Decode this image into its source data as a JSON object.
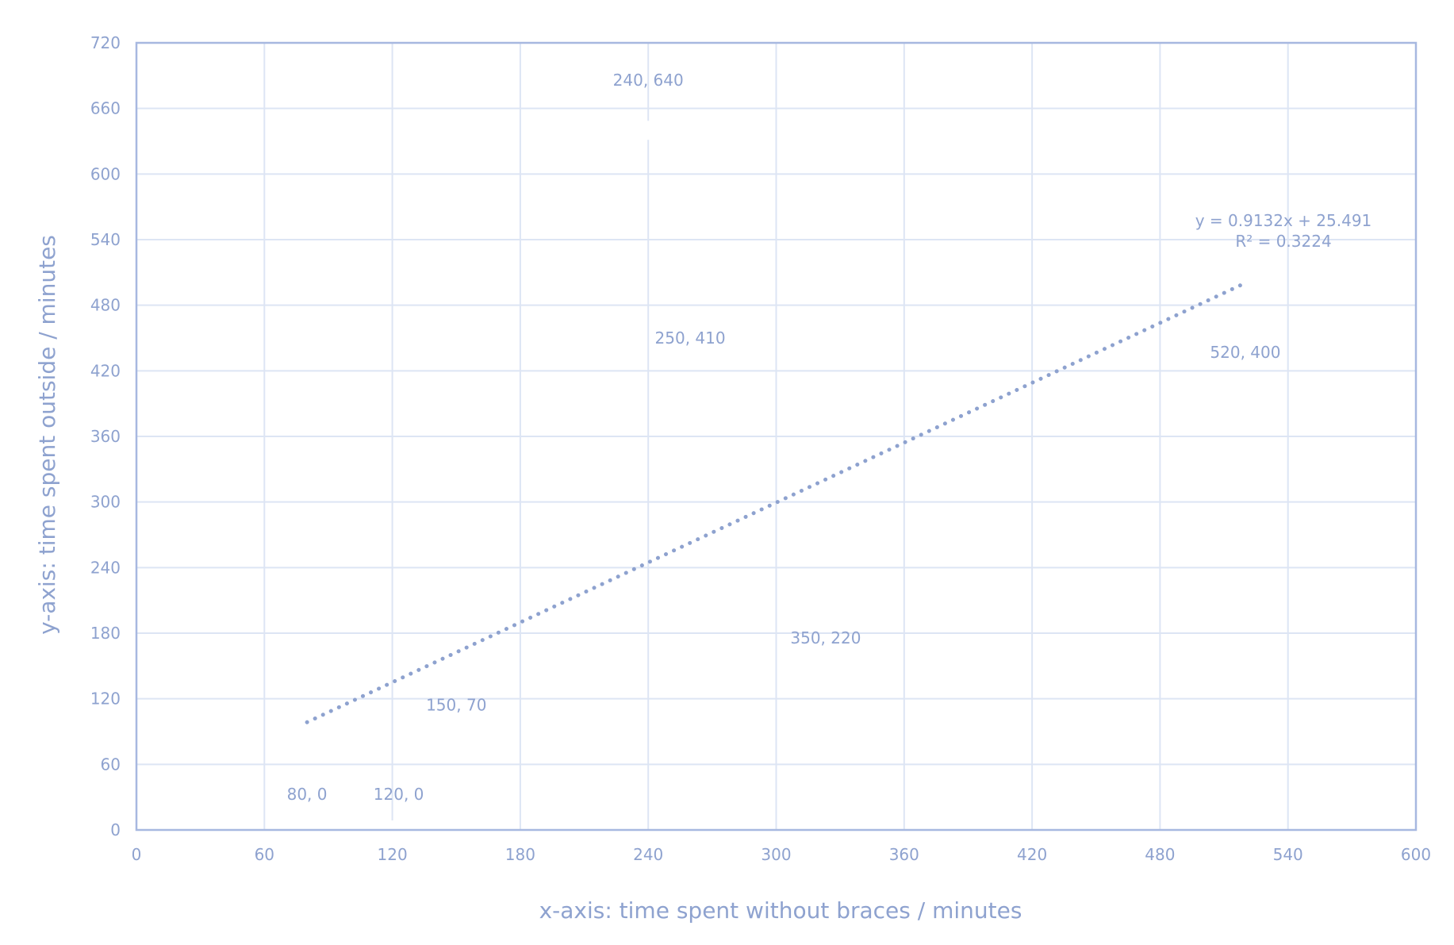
{
  "colors": {
    "text": "#8ea2cf",
    "axis": "#a7b8e0",
    "grid": "#dde5f4",
    "trendline": "#8ea2cf",
    "marker": "#ffffff"
  },
  "chart_data": {
    "type": "scatter",
    "title": "",
    "xlabel": "x-axis: time spent without braces / minutes",
    "ylabel": "y-axis: time spent outside / minutes",
    "xlim": [
      0,
      600
    ],
    "ylim": [
      0,
      720
    ],
    "xticks": [
      "0",
      "60",
      "120",
      "180",
      "240",
      "300",
      "360",
      "420",
      "480",
      "540",
      "600"
    ],
    "yticks": [
      "0",
      "60",
      "120",
      "180",
      "240",
      "300",
      "360",
      "420",
      "480",
      "540",
      "600",
      "660",
      "720"
    ],
    "grid": true,
    "series": [
      {
        "points": [
          {
            "x": 80,
            "y": 0,
            "label": "80, 0"
          },
          {
            "x": 120,
            "y": 0,
            "label": "120, 0"
          },
          {
            "x": 150,
            "y": 70,
            "label": "150, 70"
          },
          {
            "x": 240,
            "y": 640,
            "label": "240, 640"
          },
          {
            "x": 250,
            "y": 410,
            "label": "250, 410"
          },
          {
            "x": 350,
            "y": 220,
            "label": "350, 220"
          },
          {
            "x": 520,
            "y": 400,
            "label": "520, 400"
          }
        ]
      }
    ],
    "trendline": {
      "type": "linear",
      "slope": 0.9132,
      "intercept": 25.491,
      "x_range": [
        80,
        520
      ],
      "equation": "y = 0.9132x + 25.491",
      "r_squared": "R² = 0.3224"
    }
  }
}
